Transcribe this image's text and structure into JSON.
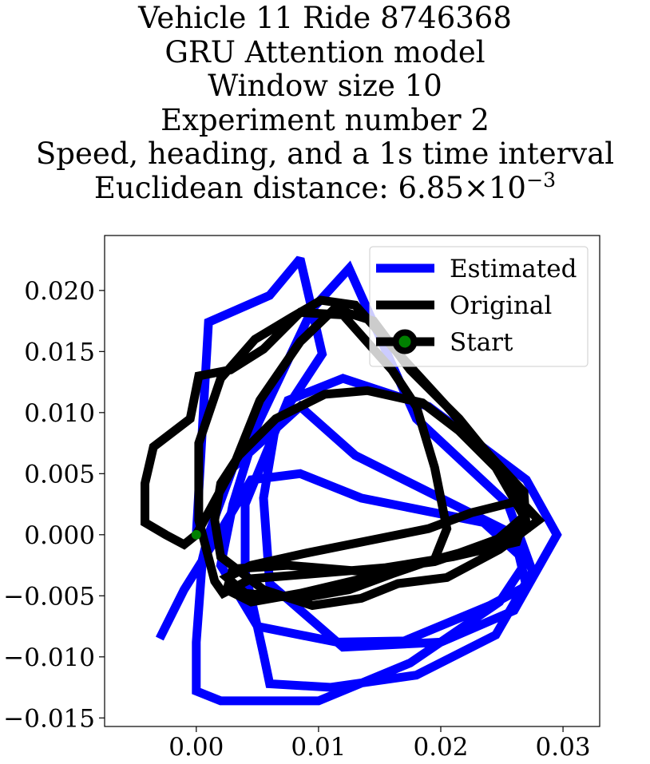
{
  "chart_data": {
    "type": "line",
    "title_lines": [
      "Vehicle 11 Ride 8746368",
      "GRU Attention model",
      "Window size 10",
      "Experiment number 2",
      "Speed, heading, and a 1s time interval"
    ],
    "distance_prefix": "Euclidean distance: ",
    "distance_mantissa": "6.85",
    "distance_times": "×",
    "distance_base": "10",
    "distance_exponent": "−3",
    "xlabel": "",
    "ylabel": "",
    "xlim": [
      -0.0075,
      0.033
    ],
    "ylim": [
      -0.0157,
      0.0245
    ],
    "xticks": [
      0.0,
      0.01,
      0.02,
      0.03
    ],
    "xtick_labels": [
      "0.00",
      "0.01",
      "0.02",
      "0.03"
    ],
    "yticks": [
      -0.015,
      -0.01,
      -0.005,
      0.0,
      0.005,
      0.01,
      0.015,
      0.02
    ],
    "ytick_labels": [
      "−0.015",
      "−0.010",
      "−0.005",
      "0.000",
      "0.005",
      "0.010",
      "0.015",
      "0.020"
    ],
    "grid": false,
    "legend_position": "top-right",
    "series": [
      {
        "name": "Estimated",
        "color": "#0000ff",
        "points": [
          [
            0.0,
            0.0
          ],
          [
            0.001,
            0.0174
          ],
          [
            0.006,
            0.0196
          ],
          [
            0.0085,
            0.0226
          ],
          [
            0.0103,
            0.0148
          ],
          [
            0.0065,
            0.009
          ],
          [
            0.0055,
            0.003
          ],
          [
            0.006,
            -0.004
          ],
          [
            0.012,
            -0.0092
          ],
          [
            0.02,
            -0.0088
          ],
          [
            0.026,
            -0.0062
          ],
          [
            0.0295,
            0.0
          ],
          [
            0.027,
            0.0045
          ],
          [
            0.019,
            0.0105
          ],
          [
            0.012,
            0.0128
          ],
          [
            0.0075,
            0.011
          ],
          [
            0.004,
            0.0025
          ],
          [
            0.004,
            -0.003
          ],
          [
            0.0055,
            -0.0098
          ],
          [
            0.006,
            -0.0122
          ],
          [
            0.011,
            -0.0125
          ],
          [
            0.018,
            -0.0115
          ],
          [
            0.0245,
            -0.0082
          ],
          [
            0.0275,
            -0.003
          ],
          [
            0.0255,
            0.0025
          ],
          [
            0.018,
            0.0095
          ],
          [
            0.0125,
            0.0218
          ],
          [
            0.0095,
            0.0185
          ],
          [
            0.005,
            0.009
          ],
          [
            0.003,
            0.0025
          ],
          [
            0.002,
            -0.0025
          ],
          [
            0.005,
            -0.0075
          ],
          [
            0.0115,
            -0.0088
          ],
          [
            0.017,
            -0.0087
          ],
          [
            0.024,
            -0.0058
          ],
          [
            0.027,
            -0.0042
          ],
          [
            0.026,
            0.0
          ],
          [
            0.019,
            0.0035
          ],
          [
            0.013,
            0.0065
          ],
          [
            0.0085,
            0.0105
          ],
          [
            0.003,
            0.0055
          ],
          [
            0.001,
            0.0
          ],
          [
            0.0005,
            -0.002
          ],
          [
            0.0,
            -0.0088
          ],
          [
            0.0,
            -0.0128
          ],
          [
            0.002,
            -0.0136
          ],
          [
            0.01,
            -0.0136
          ],
          [
            0.0175,
            -0.0105
          ],
          [
            0.0248,
            -0.0055
          ],
          [
            0.027,
            -0.0022
          ],
          [
            0.0235,
            0.001
          ],
          [
            0.0135,
            0.003
          ],
          [
            0.0085,
            0.005
          ],
          [
            0.0045,
            0.0045
          ],
          [
            0.0015,
            -0.0005
          ],
          [
            -0.001,
            -0.0045
          ],
          [
            -0.003,
            -0.0085
          ]
        ]
      },
      {
        "name": "Original",
        "color": "#000000",
        "points": [
          [
            0.0,
            0.0
          ],
          [
            0.003,
            0.0055
          ],
          [
            0.0052,
            0.011
          ],
          [
            0.0085,
            0.0158
          ],
          [
            0.0113,
            0.0185
          ],
          [
            0.0145,
            0.0175
          ],
          [
            0.0175,
            0.0135
          ],
          [
            0.0215,
            0.0095
          ],
          [
            0.025,
            0.0052
          ],
          [
            0.027,
            0.0018
          ],
          [
            0.0262,
            -0.0006
          ],
          [
            0.021,
            -0.0018
          ],
          [
            0.0155,
            -0.0027
          ],
          [
            0.0095,
            -0.0032
          ],
          [
            0.0045,
            -0.0036
          ],
          [
            0.0022,
            -0.0048
          ],
          [
            0.0015,
            -0.0038
          ],
          [
            0.0002,
            0.0012
          ],
          [
            0.0002,
            0.0075
          ],
          [
            0.002,
            0.0128
          ],
          [
            0.0048,
            0.016
          ],
          [
            0.0078,
            0.0178
          ],
          [
            0.0102,
            0.0192
          ],
          [
            0.013,
            0.0188
          ],
          [
            0.0162,
            0.0152
          ],
          [
            0.0205,
            0.0105
          ],
          [
            0.024,
            0.0065
          ],
          [
            0.0268,
            0.0035
          ],
          [
            0.027,
            0.0005
          ],
          [
            0.0215,
            -0.0015
          ],
          [
            0.014,
            -0.0035
          ],
          [
            0.0085,
            -0.0048
          ],
          [
            0.0045,
            -0.0055
          ],
          [
            0.0025,
            -0.0045
          ],
          [
            0.003,
            -0.0028
          ],
          [
            0.0075,
            -0.0025
          ],
          [
            0.0135,
            -0.003
          ],
          [
            0.0195,
            -0.0022
          ],
          [
            0.0245,
            -0.0005
          ],
          [
            0.0268,
            0.0015
          ],
          [
            0.0245,
            0.0055
          ],
          [
            0.0215,
            0.0085
          ],
          [
            0.0185,
            0.0108
          ],
          [
            0.014,
            0.0118
          ],
          [
            0.0105,
            0.0115
          ],
          [
            0.0065,
            0.0095
          ],
          [
            0.0035,
            0.0065
          ],
          [
            0.002,
            0.0042
          ],
          [
            0.0015,
            0.0012
          ],
          [
            0.002,
            -0.0018
          ],
          [
            0.0055,
            -0.0045
          ],
          [
            0.0095,
            -0.0058
          ],
          [
            0.0135,
            -0.0052
          ],
          [
            0.0165,
            -0.004
          ],
          [
            0.0205,
            -0.0035
          ],
          [
            0.0248,
            -0.0012
          ],
          [
            0.028,
            0.0012
          ],
          [
            0.0265,
            0.0028
          ],
          [
            0.0225,
            0.0018
          ],
          [
            0.019,
            0.0005
          ],
          [
            0.014,
            -0.0005
          ],
          [
            0.009,
            -0.0015
          ],
          [
            0.0045,
            -0.0025
          ],
          [
            0.0025,
            -0.0035
          ],
          [
            0.004,
            -0.0048
          ],
          [
            0.0085,
            -0.0052
          ],
          [
            0.0125,
            -0.0045
          ],
          [
            0.016,
            -0.0032
          ],
          [
            0.0195,
            -0.002
          ],
          [
            0.0205,
            0.0005
          ],
          [
            0.0195,
            0.0055
          ],
          [
            0.018,
            0.0105
          ],
          [
            0.016,
            0.0135
          ],
          [
            0.012,
            0.018
          ],
          [
            0.0085,
            0.0182
          ],
          [
            0.0055,
            0.0152
          ],
          [
            0.0028,
            0.0135
          ],
          [
            0.0002,
            0.013
          ],
          [
            -0.0005,
            0.0095
          ],
          [
            -0.0035,
            0.0072
          ],
          [
            -0.0042,
            0.0042
          ],
          [
            -0.0042,
            0.001
          ],
          [
            -0.0025,
            0.0
          ],
          [
            -0.001,
            -0.0008
          ],
          [
            0.0,
            0.0
          ]
        ]
      }
    ],
    "start": {
      "name": "Start",
      "x": 0.0,
      "y": 0.0,
      "marker_color": "#008000",
      "edge_color": "#000000"
    }
  }
}
